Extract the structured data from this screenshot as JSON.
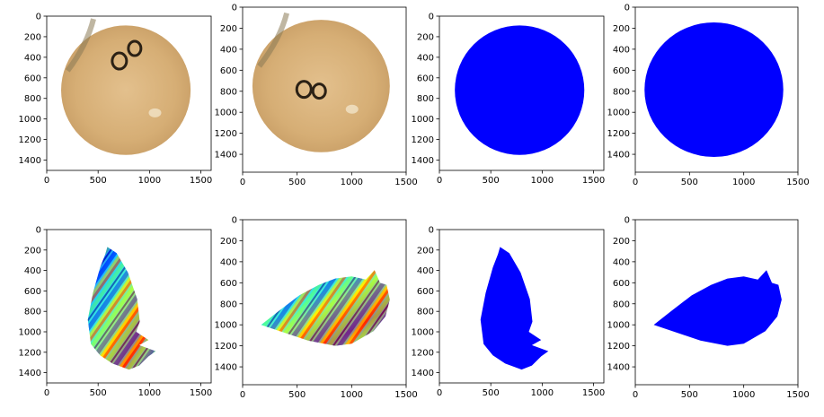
{
  "chart_data": [
    {
      "type": "image",
      "content": "photo of circular parchment fragment with ink marks",
      "colors": {
        "parchment": "#d8b27a",
        "ink": "#2b2115"
      },
      "xlim": [
        0,
        1600
      ],
      "ylim": [
        1500,
        0
      ],
      "xticks": [
        0,
        500,
        1000,
        1500
      ],
      "yticks": [
        0,
        200,
        400,
        600,
        800,
        1000,
        1200,
        1400
      ],
      "circle": {
        "cx": 770,
        "cy": 720,
        "r": 630
      }
    },
    {
      "type": "image",
      "content": "photo of circular parchment fragment with ink marks, rotated",
      "colors": {
        "parchment": "#d8b27a",
        "ink": "#2b2115"
      },
      "xlim": [
        0,
        1500
      ],
      "ylim": [
        1570,
        0
      ],
      "xticks": [
        0,
        500,
        1000,
        1500
      ],
      "yticks": [
        0,
        200,
        400,
        600,
        800,
        1000,
        1200,
        1400
      ],
      "circle": {
        "cx": 720,
        "cy": 750,
        "r": 630
      }
    },
    {
      "type": "image",
      "content": "binary mask (circle)",
      "colors": {
        "mask": "#0000ff"
      },
      "xlim": [
        0,
        1600
      ],
      "ylim": [
        1500,
        0
      ],
      "xticks": [
        0,
        500,
        1000,
        1500
      ],
      "yticks": [
        0,
        200,
        400,
        600,
        800,
        1000,
        1200,
        1400
      ],
      "circle": {
        "cx": 780,
        "cy": 720,
        "r": 630
      }
    },
    {
      "type": "image",
      "content": "binary mask (circle)",
      "colors": {
        "mask": "#0000ff"
      },
      "xlim": [
        0,
        1500
      ],
      "ylim": [
        1570,
        0
      ],
      "xticks": [
        0,
        500,
        1000,
        1500
      ],
      "yticks": [
        0,
        200,
        400,
        600,
        800,
        1000,
        1200,
        1400
      ],
      "circle": {
        "cx": 725,
        "cy": 785,
        "r": 640
      }
    },
    {
      "type": "heatmap",
      "content": "warped fragment, jet colormap texture",
      "colors": {
        "mask": "#0000ff"
      },
      "xlim": [
        0,
        1600
      ],
      "ylim": [
        1500,
        0
      ],
      "xticks": [
        0,
        500,
        1000,
        1500
      ],
      "yticks": [
        0,
        200,
        400,
        600,
        800,
        1000,
        1200,
        1400
      ],
      "polygon": [
        [
          590,
          170
        ],
        [
          680,
          230
        ],
        [
          790,
          420
        ],
        [
          880,
          680
        ],
        [
          905,
          900
        ],
        [
          870,
          1000
        ],
        [
          990,
          1080
        ],
        [
          900,
          1130
        ],
        [
          1060,
          1190
        ],
        [
          990,
          1240
        ],
        [
          900,
          1330
        ],
        [
          800,
          1370
        ],
        [
          640,
          1310
        ],
        [
          520,
          1230
        ],
        [
          430,
          1120
        ],
        [
          400,
          880
        ],
        [
          450,
          620
        ],
        [
          520,
          370
        ],
        [
          570,
          240
        ]
      ]
    },
    {
      "type": "heatmap",
      "content": "warped fragment, jet colormap texture",
      "colors": {
        "mask": "#0000ff"
      },
      "xlim": [
        0,
        1500
      ],
      "ylim": [
        1570,
        0
      ],
      "xticks": [
        0,
        500,
        1000,
        1500
      ],
      "yticks": [
        0,
        200,
        400,
        600,
        800,
        1000,
        1200,
        1400
      ],
      "polygon": [
        [
          170,
          1000
        ],
        [
          330,
          870
        ],
        [
          520,
          720
        ],
        [
          700,
          620
        ],
        [
          850,
          560
        ],
        [
          1000,
          540
        ],
        [
          1130,
          570
        ],
        [
          1210,
          480
        ],
        [
          1260,
          600
        ],
        [
          1320,
          620
        ],
        [
          1350,
          760
        ],
        [
          1310,
          920
        ],
        [
          1200,
          1060
        ],
        [
          1000,
          1180
        ],
        [
          850,
          1200
        ],
        [
          600,
          1150
        ],
        [
          400,
          1080
        ]
      ]
    },
    {
      "type": "image",
      "content": "binary mask (warped fragment)",
      "colors": {
        "mask": "#0000ff"
      },
      "xlim": [
        0,
        1600
      ],
      "ylim": [
        1500,
        0
      ],
      "xticks": [
        0,
        500,
        1000,
        1500
      ],
      "yticks": [
        0,
        200,
        400,
        600,
        800,
        1000,
        1200,
        1400
      ],
      "polygon": [
        [
          590,
          170
        ],
        [
          680,
          230
        ],
        [
          790,
          420
        ],
        [
          880,
          680
        ],
        [
          905,
          900
        ],
        [
          870,
          1000
        ],
        [
          990,
          1080
        ],
        [
          900,
          1130
        ],
        [
          1060,
          1190
        ],
        [
          990,
          1240
        ],
        [
          900,
          1330
        ],
        [
          800,
          1370
        ],
        [
          640,
          1310
        ],
        [
          520,
          1230
        ],
        [
          430,
          1120
        ],
        [
          400,
          880
        ],
        [
          450,
          620
        ],
        [
          520,
          370
        ],
        [
          570,
          240
        ]
      ]
    },
    {
      "type": "image",
      "content": "binary mask (warped fragment)",
      "colors": {
        "mask": "#0000ff"
      },
      "xlim": [
        0,
        1500
      ],
      "ylim": [
        1570,
        0
      ],
      "xticks": [
        0,
        500,
        1000,
        1500
      ],
      "yticks": [
        0,
        200,
        400,
        600,
        800,
        1000,
        1200,
        1400
      ],
      "polygon": [
        [
          170,
          1000
        ],
        [
          330,
          870
        ],
        [
          520,
          720
        ],
        [
          700,
          620
        ],
        [
          850,
          560
        ],
        [
          1000,
          540
        ],
        [
          1130,
          570
        ],
        [
          1210,
          480
        ],
        [
          1260,
          600
        ],
        [
          1320,
          620
        ],
        [
          1350,
          760
        ],
        [
          1310,
          920
        ],
        [
          1200,
          1060
        ],
        [
          1000,
          1180
        ],
        [
          850,
          1200
        ],
        [
          600,
          1150
        ],
        [
          400,
          1080
        ]
      ]
    }
  ]
}
